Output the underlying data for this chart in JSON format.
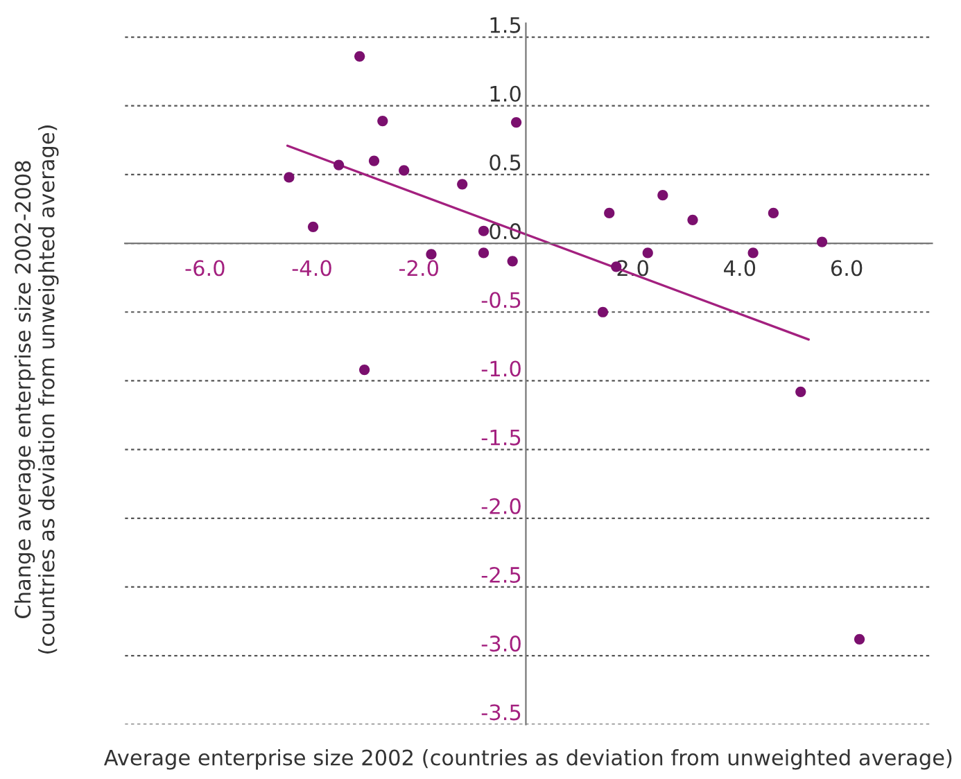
{
  "chart_data": {
    "type": "scatter",
    "xlabel": "Average enterprise size 2002 (countries as deviation from unweighted average)",
    "ylabel": "Change average enterprise size 2002-2008\n(countries as deviation from unweighted average)",
    "xlim": [
      -7.5,
      7.6
    ],
    "ylim": [
      -3.5,
      1.6
    ],
    "xticks": [
      {
        "value": -6,
        "label": "-6.0"
      },
      {
        "value": -4,
        "label": "-4.0"
      },
      {
        "value": -2,
        "label": "-2.0"
      },
      {
        "value": 2,
        "label": "2.0"
      },
      {
        "value": 4,
        "label": "4.0"
      },
      {
        "value": 6,
        "label": "6.0"
      }
    ],
    "yticks": [
      {
        "value": 1.5,
        "label": "1.5"
      },
      {
        "value": 1.0,
        "label": "1.0"
      },
      {
        "value": 0.5,
        "label": "0.5"
      },
      {
        "value": 0.0,
        "label": "0.0"
      },
      {
        "value": -0.5,
        "label": "-0.5"
      },
      {
        "value": -1.0,
        "label": "-1.0"
      },
      {
        "value": -1.5,
        "label": "-1.5"
      },
      {
        "value": -2.0,
        "label": "-2.0"
      },
      {
        "value": -2.5,
        "label": "-2.5"
      },
      {
        "value": -3.0,
        "label": "-3.0"
      },
      {
        "value": -3.5,
        "label": "-3.5"
      }
    ],
    "grid": "y",
    "series": [
      {
        "marker": "circle",
        "color": "#7b0f6e",
        "x": [
          -4.43,
          -3.98,
          -3.5,
          -3.11,
          -2.84,
          -2.68,
          -3.02,
          -2.28,
          -1.77,
          -1.19,
          -0.79,
          -0.79,
          -0.25,
          -0.18,
          1.56,
          2.56,
          3.12,
          4.63,
          5.54,
          2.28,
          4.25,
          1.69,
          1.44,
          5.14,
          6.24
        ],
        "values": [
          0.48,
          0.12,
          0.57,
          1.36,
          0.6,
          0.89,
          -0.92,
          0.53,
          -0.08,
          0.43,
          0.09,
          -0.07,
          -0.13,
          0.88,
          0.22,
          0.35,
          0.17,
          0.22,
          0.01,
          -0.07,
          -0.07,
          -0.17,
          -0.5,
          -1.08,
          -2.88
        ]
      },
      {
        "type": "line",
        "color": "#a3207f",
        "x": [
          -4.46,
          5.29
        ],
        "values": [
          0.71,
          -0.7
        ]
      }
    ]
  }
}
